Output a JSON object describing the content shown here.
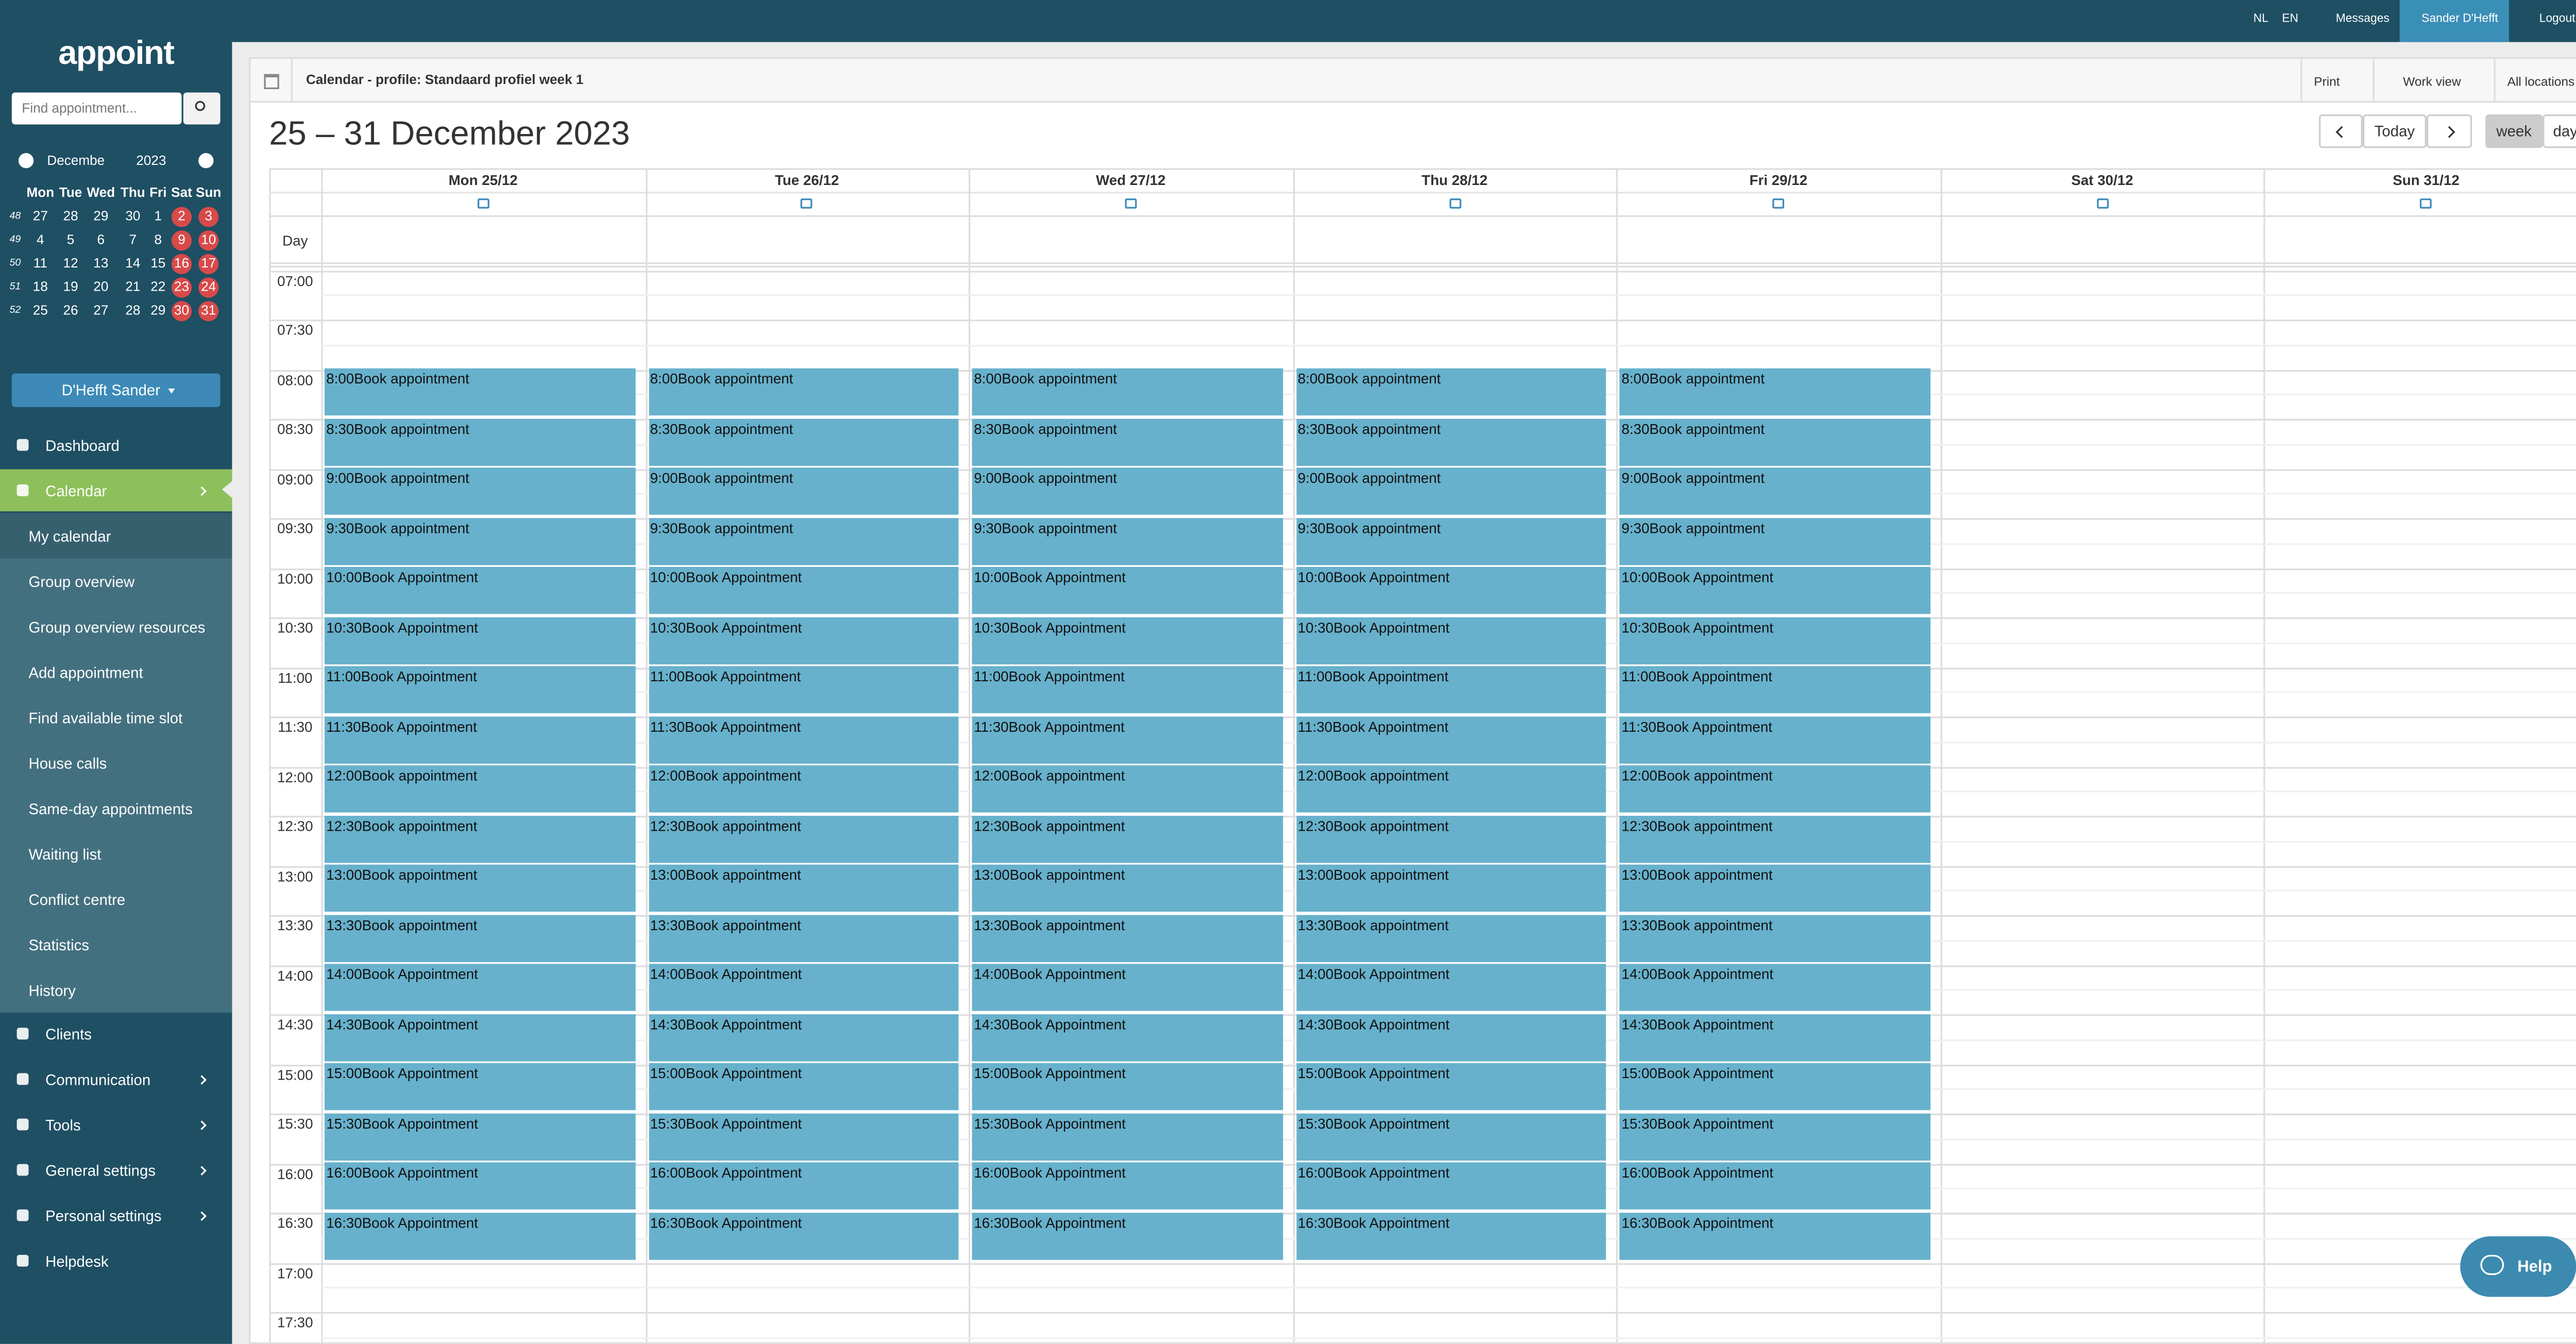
{
  "topbar": {
    "languages": [
      "NL",
      "EN"
    ],
    "messages": "Messages",
    "user": "Sander D'Hefft",
    "logout": "Logout"
  },
  "sidebar": {
    "logo": "appoint",
    "search_placeholder": "Find appointment...",
    "mini_calendar": {
      "month": "Decembe",
      "year": "2023",
      "weekdays": [
        "Mon",
        "Tue",
        "Wed",
        "Thu",
        "Fri",
        "Sat",
        "Sun"
      ],
      "weeks": [
        {
          "number": 48,
          "days": [
            27,
            28,
            29,
            30,
            1,
            2,
            3
          ]
        },
        {
          "number": 49,
          "days": [
            4,
            5,
            6,
            7,
            8,
            9,
            10
          ]
        },
        {
          "number": 50,
          "days": [
            11,
            12,
            13,
            14,
            15,
            16,
            17
          ]
        },
        {
          "number": 51,
          "days": [
            18,
            19,
            20,
            21,
            22,
            23,
            24
          ]
        },
        {
          "number": 52,
          "days": [
            25,
            26,
            27,
            28,
            29,
            30,
            31
          ]
        }
      ]
    },
    "user_button": "D'Hefft Sander",
    "menu_top": [
      "Dashboard",
      "Calendar"
    ],
    "submenu": [
      "My calendar",
      "Group overview",
      "Group overview resources",
      "Add appointment",
      "Find available time slot",
      "House calls",
      "Same-day appointments",
      "Waiting list",
      "Conflict centre",
      "Statistics",
      "History"
    ],
    "menu_bottom": [
      "Clients",
      "Communication",
      "Tools",
      "General settings",
      "Personal settings",
      "Helpdesk"
    ]
  },
  "calendar": {
    "header_title": "Calendar - profile: Standaard profiel week 1",
    "print": "Print",
    "work_view": "Work view",
    "locations": "All locations",
    "title": "25 – 31 December 2023",
    "today": "Today",
    "week": "week",
    "day": "day",
    "day_row": "Day",
    "times": [
      "07:00",
      "07:30",
      "08:00",
      "08:30",
      "09:00",
      "09:30",
      "10:00",
      "10:30",
      "11:00",
      "11:30",
      "12:00",
      "12:30",
      "13:00",
      "13:30",
      "14:00",
      "14:30",
      "15:00",
      "15:30",
      "16:00",
      "16:30",
      "17:00",
      "17:30"
    ],
    "days": [
      {
        "name": "Mon 25/12",
        "slots": [
          {
            "time": "8:00",
            "label": "Book appointment"
          },
          {
            "time": "8:30",
            "label": "Book appointment"
          },
          {
            "time": "9:00",
            "label": "Book appointment"
          },
          {
            "time": "9:30",
            "label": "Book appointment"
          },
          {
            "time": "10:00",
            "label": "Book Appointment"
          },
          {
            "time": "10:30",
            "label": "Book Appointment"
          },
          {
            "time": "11:00",
            "label": "Book Appointment"
          },
          {
            "time": "11:30",
            "label": "Book Appointment"
          },
          {
            "time": "12:00",
            "label": "Book appointment"
          },
          {
            "time": "12:30",
            "label": "Book appointment"
          },
          {
            "time": "13:00",
            "label": "Book appointment"
          },
          {
            "time": "13:30",
            "label": "Book appointment"
          },
          {
            "time": "14:00",
            "label": "Book Appointment"
          },
          {
            "time": "14:30",
            "label": "Book Appointment"
          },
          {
            "time": "15:00",
            "label": "Book Appointment"
          },
          {
            "time": "15:30",
            "label": "Book Appointment"
          },
          {
            "time": "16:00",
            "label": "Book Appointment"
          },
          {
            "time": "16:30",
            "label": "Book Appointment"
          }
        ]
      },
      {
        "name": "Tue 26/12",
        "slots": [
          {
            "time": "8:00",
            "label": "Book appointment"
          },
          {
            "time": "8:30",
            "label": "Book appointment"
          },
          {
            "time": "9:00",
            "label": "Book appointment"
          },
          {
            "time": "9:30",
            "label": "Book appointment"
          },
          {
            "time": "10:00",
            "label": "Book Appointment"
          },
          {
            "time": "10:30",
            "label": "Book Appointment"
          },
          {
            "time": "11:00",
            "label": "Book Appointment"
          },
          {
            "time": "11:30",
            "label": "Book Appointment"
          },
          {
            "time": "12:00",
            "label": "Book appointment"
          },
          {
            "time": "12:30",
            "label": "Book appointment"
          },
          {
            "time": "13:00",
            "label": "Book appointment"
          },
          {
            "time": "13:30",
            "label": "Book appointment"
          },
          {
            "time": "14:00",
            "label": "Book Appointment"
          },
          {
            "time": "14:30",
            "label": "Book Appointment"
          },
          {
            "time": "15:00",
            "label": "Book Appointment"
          },
          {
            "time": "15:30",
            "label": "Book Appointment"
          },
          {
            "time": "16:00",
            "label": "Book Appointment"
          },
          {
            "time": "16:30",
            "label": "Book Appointment"
          }
        ]
      },
      {
        "name": "Wed 27/12",
        "slots": [
          {
            "time": "8:00",
            "label": "Book appointment"
          },
          {
            "time": "8:30",
            "label": "Book appointment"
          },
          {
            "time": "9:00",
            "label": "Book appointment"
          },
          {
            "time": "9:30",
            "label": "Book appointment"
          },
          {
            "time": "10:00",
            "label": "Book Appointment"
          },
          {
            "time": "10:30",
            "label": "Book Appointment"
          },
          {
            "time": "11:00",
            "label": "Book Appointment"
          },
          {
            "time": "11:30",
            "label": "Book Appointment"
          },
          {
            "time": "12:00",
            "label": "Book appointment"
          },
          {
            "time": "12:30",
            "label": "Book appointment"
          },
          {
            "time": "13:00",
            "label": "Book appointment"
          },
          {
            "time": "13:30",
            "label": "Book appointment"
          },
          {
            "time": "14:00",
            "label": "Book Appointment"
          },
          {
            "time": "14:30",
            "label": "Book Appointment"
          },
          {
            "time": "15:00",
            "label": "Book Appointment"
          },
          {
            "time": "15:30",
            "label": "Book Appointment"
          },
          {
            "time": "16:00",
            "label": "Book Appointment"
          },
          {
            "time": "16:30",
            "label": "Book Appointment"
          }
        ]
      },
      {
        "name": "Thu 28/12",
        "slots": [
          {
            "time": "8:00",
            "label": "Book appointment"
          },
          {
            "time": "8:30",
            "label": "Book appointment"
          },
          {
            "time": "9:00",
            "label": "Book appointment"
          },
          {
            "time": "9:30",
            "label": "Book appointment"
          },
          {
            "time": "10:00",
            "label": "Book Appointment"
          },
          {
            "time": "10:30",
            "label": "Book Appointment"
          },
          {
            "time": "11:00",
            "label": "Book Appointment"
          },
          {
            "time": "11:30",
            "label": "Book Appointment"
          },
          {
            "time": "12:00",
            "label": "Book appointment"
          },
          {
            "time": "12:30",
            "label": "Book appointment"
          },
          {
            "time": "13:00",
            "label": "Book appointment"
          },
          {
            "time": "13:30",
            "label": "Book appointment"
          },
          {
            "time": "14:00",
            "label": "Book Appointment"
          },
          {
            "time": "14:30",
            "label": "Book Appointment"
          },
          {
            "time": "15:00",
            "label": "Book Appointment"
          },
          {
            "time": "15:30",
            "label": "Book Appointment"
          },
          {
            "time": "16:00",
            "label": "Book Appointment"
          },
          {
            "time": "16:30",
            "label": "Book Appointment"
          }
        ]
      },
      {
        "name": "Fri 29/12",
        "slots": [
          {
            "time": "8:00",
            "label": "Book appointment"
          },
          {
            "time": "8:30",
            "label": "Book appointment"
          },
          {
            "time": "9:00",
            "label": "Book appointment"
          },
          {
            "time": "9:30",
            "label": "Book appointment"
          },
          {
            "time": "10:00",
            "label": "Book Appointment"
          },
          {
            "time": "10:30",
            "label": "Book Appointment"
          },
          {
            "time": "11:00",
            "label": "Book Appointment"
          },
          {
            "time": "11:30",
            "label": "Book Appointment"
          },
          {
            "time": "12:00",
            "label": "Book appointment"
          },
          {
            "time": "12:30",
            "label": "Book appointment"
          },
          {
            "time": "13:00",
            "label": "Book appointment"
          },
          {
            "time": "13:30",
            "label": "Book appointment"
          },
          {
            "time": "14:00",
            "label": "Book Appointment"
          },
          {
            "time": "14:30",
            "label": "Book Appointment"
          },
          {
            "time": "15:00",
            "label": "Book Appointment"
          },
          {
            "time": "15:30",
            "label": "Book Appointment"
          },
          {
            "time": "16:00",
            "label": "Book Appointment"
          },
          {
            "time": "16:30",
            "label": "Book Appointment"
          }
        ]
      },
      {
        "name": "Sat 30/12",
        "slots": []
      },
      {
        "name": "Sun 31/12",
        "slots": []
      }
    ]
  },
  "help": "Help"
}
